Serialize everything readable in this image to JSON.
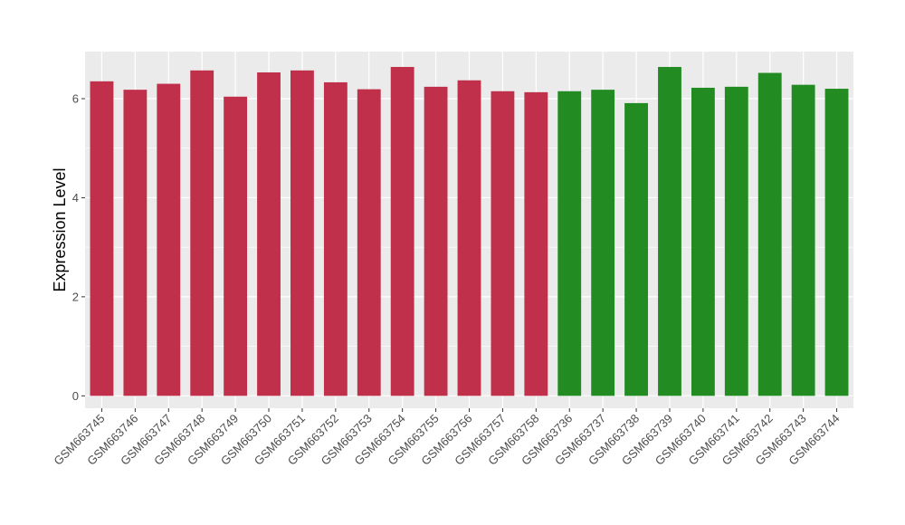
{
  "chart_data": {
    "type": "bar",
    "ylabel": "Expression Level",
    "xlabel": "",
    "ylim": [
      -0.25,
      6.95
    ],
    "yticks": [
      0,
      2,
      4,
      6
    ],
    "grid": true,
    "colors": {
      "group1": "#C0304A",
      "group2": "#228B22",
      "panel": "#EBEBEB",
      "gridline": "#FFFFFF"
    },
    "categories": [
      "GSM663745",
      "GSM663746",
      "GSM663747",
      "GSM663748",
      "GSM663749",
      "GSM663750",
      "GSM663751",
      "GSM663752",
      "GSM663753",
      "GSM663754",
      "GSM663755",
      "GSM663756",
      "GSM663757",
      "GSM663758",
      "GSM663736",
      "GSM663737",
      "GSM663738",
      "GSM663739",
      "GSM663740",
      "GSM663741",
      "GSM663742",
      "GSM663743",
      "GSM663744"
    ],
    "values": [
      6.35,
      6.18,
      6.3,
      6.57,
      6.04,
      6.53,
      6.57,
      6.33,
      6.19,
      6.64,
      6.24,
      6.37,
      6.15,
      6.13,
      6.15,
      6.18,
      5.91,
      6.64,
      6.22,
      6.24,
      6.52,
      6.28,
      6.2
    ],
    "bar_groups": [
      "group1",
      "group1",
      "group1",
      "group1",
      "group1",
      "group1",
      "group1",
      "group1",
      "group1",
      "group1",
      "group1",
      "group1",
      "group1",
      "group1",
      "group2",
      "group2",
      "group2",
      "group2",
      "group2",
      "group2",
      "group2",
      "group2",
      "group2"
    ]
  }
}
